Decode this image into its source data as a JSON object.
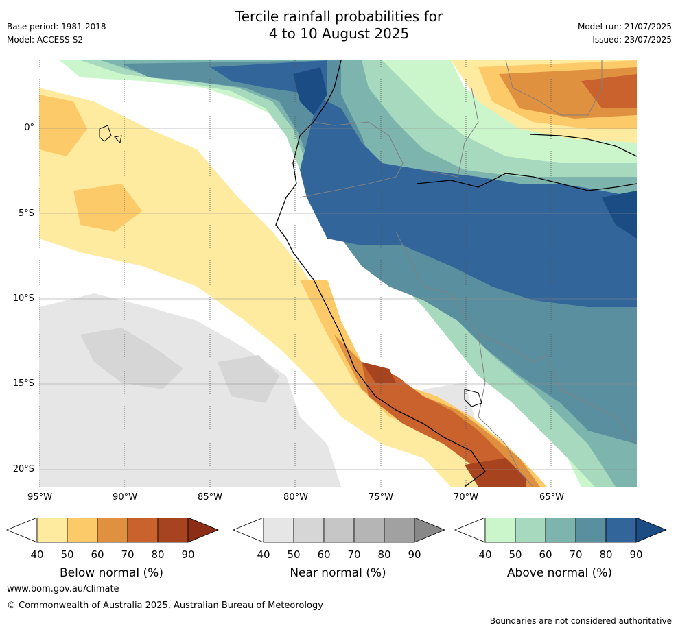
{
  "header": {
    "title_line1": "Tercile rainfall probabilities for",
    "title_line2": "4 to 10 August 2025",
    "base_period": "Base period: 1981-2018",
    "model": "Model: ACCESS-S2",
    "model_run": "Model run: 21/07/2025",
    "issued": "Issued: 23/07/2025"
  },
  "map": {
    "lat_labels": [
      "0°",
      "5°S",
      "10°S",
      "15°S",
      "20°S"
    ],
    "lon_labels": [
      "95°W",
      "90°W",
      "85°W",
      "80°W",
      "75°W",
      "70°W",
      "65°W"
    ]
  },
  "colorbars": [
    {
      "title": "Below normal (%)",
      "ticks": [
        "40",
        "50",
        "60",
        "70",
        "80",
        "90"
      ],
      "colors": [
        "#ffffff",
        "#feeb9f",
        "#fdca6a",
        "#e0913f",
        "#c9622d",
        "#a8431f",
        "#8b2e15"
      ]
    },
    {
      "title": "Near normal (%)",
      "ticks": [
        "40",
        "50",
        "60",
        "70",
        "80",
        "90"
      ],
      "colors": [
        "#ffffff",
        "#e6e6e6",
        "#d6d6d6",
        "#c6c6c6",
        "#b5b5b5",
        "#a1a1a1",
        "#888888"
      ]
    },
    {
      "title": "Above normal (%)",
      "ticks": [
        "40",
        "50",
        "60",
        "70",
        "80",
        "90"
      ],
      "colors": [
        "#ffffff",
        "#cbf6cc",
        "#a6d9bd",
        "#7db4ad",
        "#5a8fa0",
        "#32659a",
        "#1b4c84"
      ]
    }
  ],
  "footer": {
    "website": "www.bom.gov.au/climate",
    "copyright": "© Commonwealth of Australia 2025, Australian Bureau of Meteorology",
    "disclaimer": "Boundaries are not considered authoritative"
  }
}
